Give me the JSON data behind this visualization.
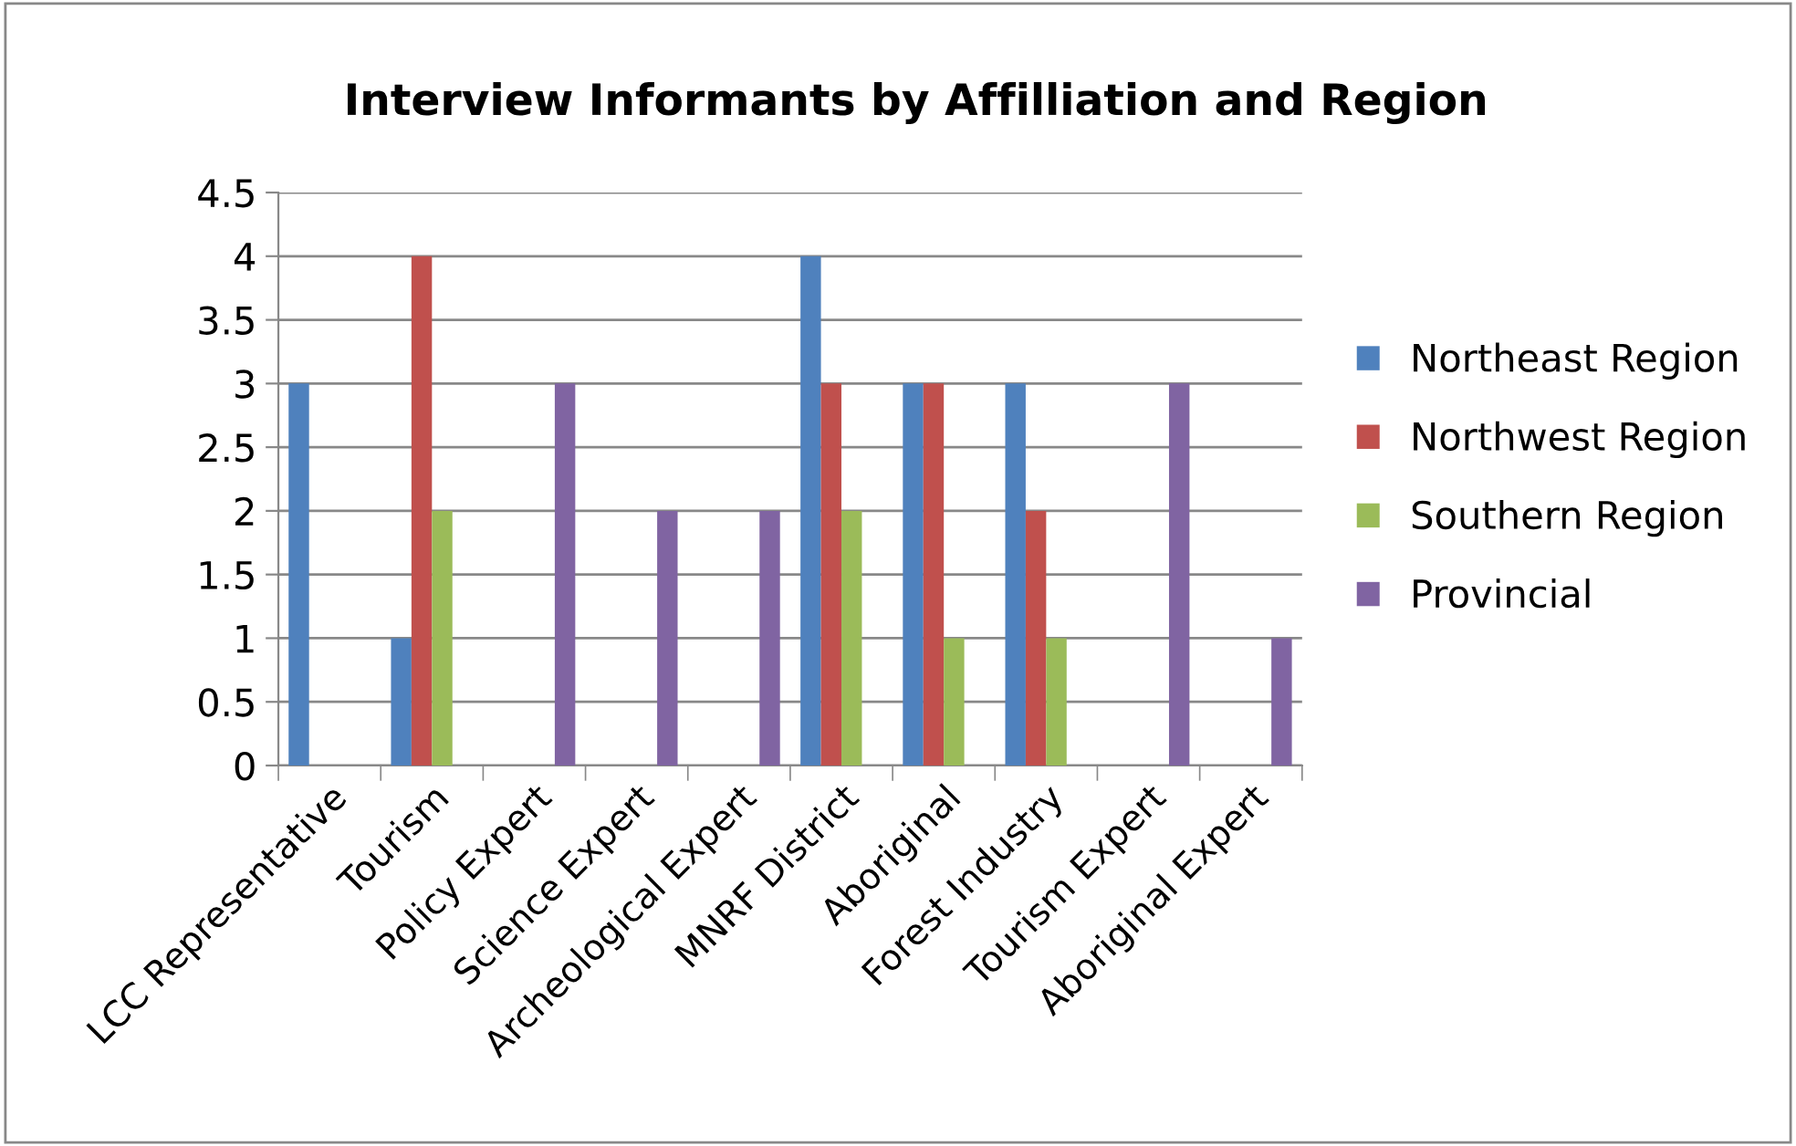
{
  "chart_data": {
    "type": "bar",
    "title": "Interview Informants by Affilliation and Region",
    "categories": [
      "LCC Representative",
      "Tourism",
      "Policy Expert",
      "Science Expert",
      "Archeological Expert",
      "MNRF District",
      "Aboriginal",
      "Forest Industry",
      "Tourism Expert",
      "Aboriginal Expert"
    ],
    "series": [
      {
        "name": "Northeast Region",
        "color": "#4f81bd",
        "values": [
          3,
          1,
          0,
          0,
          0,
          4,
          3,
          3,
          0,
          0
        ]
      },
      {
        "name": "Northwest Region",
        "color": "#c0504d",
        "values": [
          0,
          4,
          0,
          0,
          0,
          3,
          3,
          2,
          0,
          0
        ]
      },
      {
        "name": "Southern Region",
        "color": "#9bbb59",
        "values": [
          0,
          2,
          0,
          0,
          0,
          2,
          1,
          1,
          0,
          0
        ]
      },
      {
        "name": "Provincial",
        "color": "#8064a2",
        "values": [
          0,
          0,
          3,
          2,
          2,
          0,
          0,
          0,
          3,
          1
        ]
      }
    ],
    "ylim": [
      0,
      4.5
    ],
    "yticks": [
      0,
      0.5,
      1,
      1.5,
      2,
      2.5,
      3,
      3.5,
      4,
      4.5
    ],
    "grid": "y",
    "legend": "right"
  }
}
